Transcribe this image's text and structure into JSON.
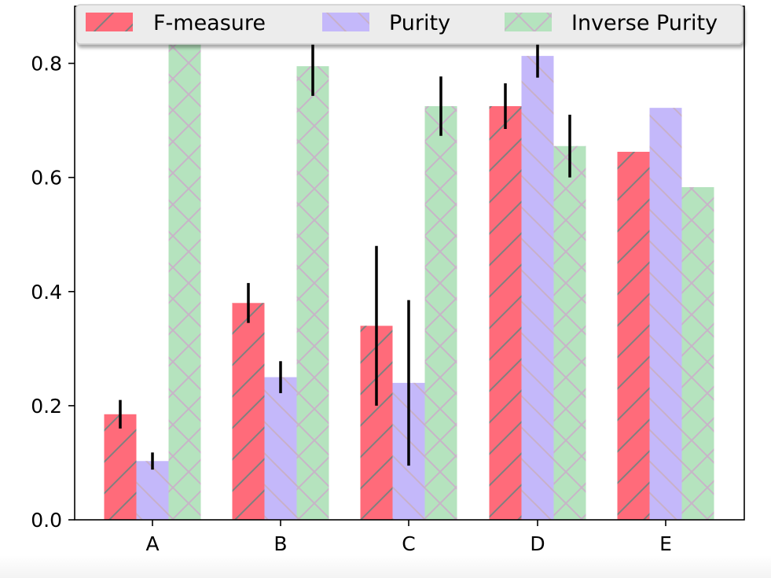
{
  "chart_data": {
    "type": "bar",
    "categories": [
      "A",
      "B",
      "C",
      "D",
      "E"
    ],
    "series": [
      {
        "name": "F-measure",
        "values": [
          0.185,
          0.38,
          0.34,
          0.725,
          0.645
        ],
        "errors": [
          0.025,
          0.035,
          0.14,
          0.04,
          null
        ],
        "color": "#ff6b7a",
        "hatch": "diagonal"
      },
      {
        "name": "Purity",
        "values": [
          0.103,
          0.25,
          0.24,
          0.813,
          0.722
        ],
        "errors": [
          0.015,
          0.028,
          0.145,
          0.038,
          null
        ],
        "color": "#c4b8fa",
        "hatch": "backslash"
      },
      {
        "name": "Inverse Purity",
        "values": [
          0.862,
          0.795,
          0.725,
          0.655,
          0.583
        ],
        "errors": [
          0.015,
          0.052,
          0.052,
          0.055,
          null
        ],
        "color": "#b5e3be",
        "hatch": "cross"
      }
    ],
    "ylim": [
      0,
      0.9
    ],
    "yticks": [
      0.0,
      0.2,
      0.4,
      0.6,
      0.8
    ],
    "ytick_labels": [
      "0.0",
      "0.2",
      "0.4",
      "0.6",
      "0.8"
    ],
    "title": "",
    "xlabel": "",
    "ylabel": "",
    "legend_position": "top",
    "grid": false,
    "error_bar_color": "#000000"
  }
}
